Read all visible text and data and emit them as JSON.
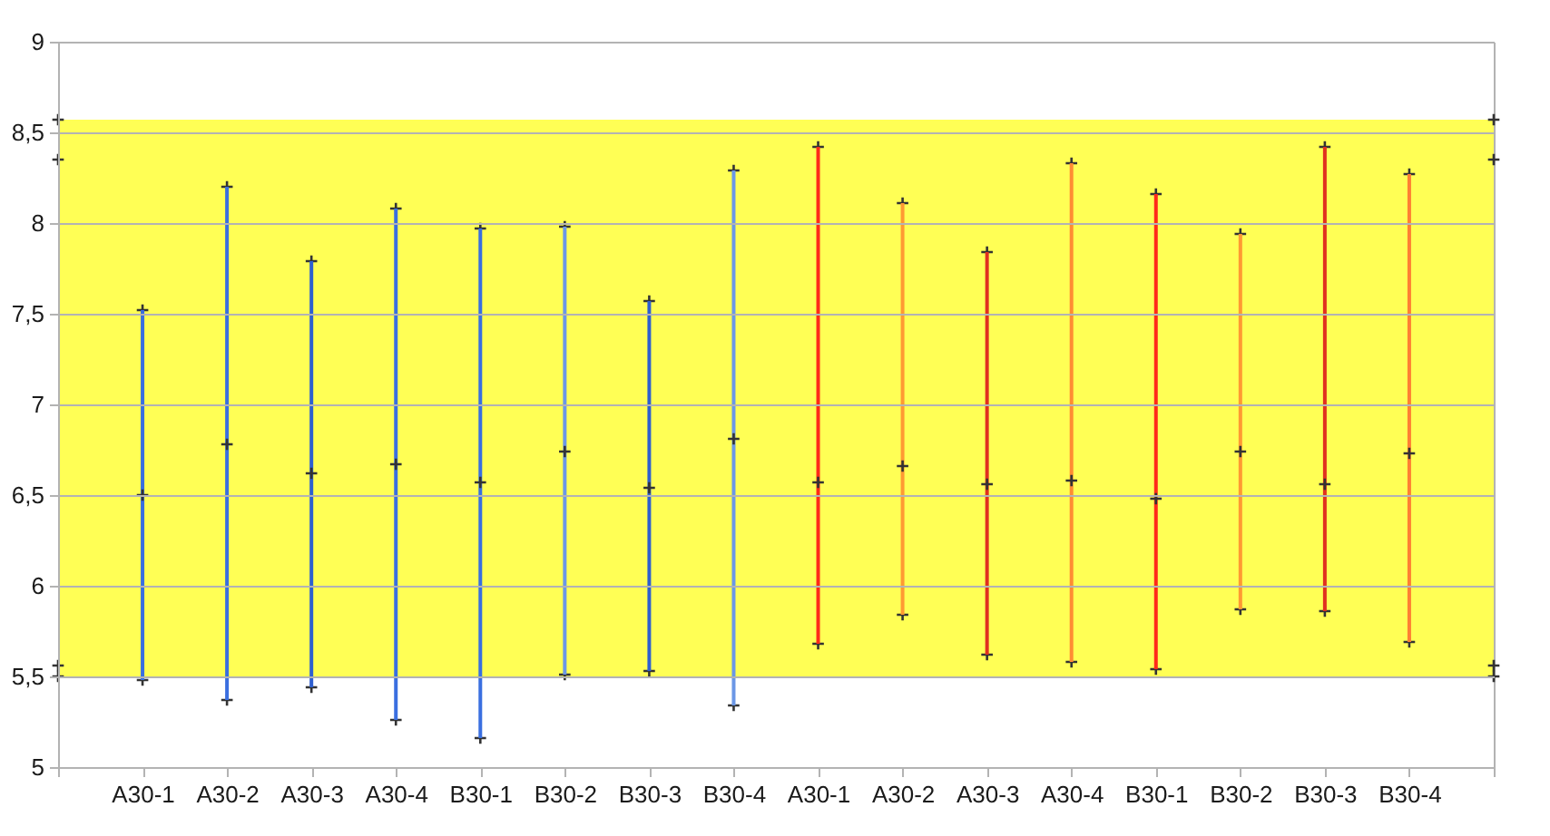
{
  "chart_data": {
    "type": "scatter",
    "categories": [
      null,
      "A30-1",
      "A30-2",
      "A30-3",
      "A30-4",
      "B30-1",
      "B30-2",
      "B30-3",
      "B30-4",
      "A30-1",
      "A30-2",
      "A30-3",
      "A30-4",
      "B30-1",
      "B30-2",
      "B30-3",
      "B30-4",
      null
    ],
    "ylim": [
      5,
      9
    ],
    "yticks": [
      5,
      {
        "value": 5.5,
        "label": "5,5"
      },
      6,
      {
        "value": 6.5,
        "label": "6,5"
      },
      7,
      {
        "value": 7.5,
        "label": "7,5"
      },
      8,
      {
        "value": 8.5,
        "label": "8,5"
      },
      9
    ],
    "grid": "y",
    "marker": "cross",
    "bands": [
      {
        "axis": "y",
        "from": 5.5,
        "to": 8.57,
        "color": "#ffff55"
      }
    ],
    "series": [
      {
        "color": "#333333",
        "values": [
          null,
          7.52,
          8.2,
          7.79,
          8.08,
          7.97,
          7.98,
          7.57,
          8.29,
          8.42,
          8.11,
          7.84,
          8.33,
          8.16,
          7.94,
          8.42,
          8.27,
          null
        ]
      },
      {
        "color": "#333333",
        "values": [
          null,
          5.48,
          5.37,
          5.44,
          5.26,
          5.16,
          5.51,
          5.53,
          5.34,
          5.68,
          5.84,
          5.62,
          5.58,
          5.54,
          5.87,
          5.86,
          5.69,
          null
        ]
      },
      {
        "type": "bar",
        "colors": [
          null,
          "#3a6fe0",
          "#3a6fe0",
          "#2f5fd0",
          "#3a6fe0",
          "#3a6fe0",
          "#6b97e6",
          "#2f5fd0",
          "#6b97e6",
          "#ff2a1a",
          "#ff9933",
          "#e03020",
          "#ff8c33",
          "#ff2a1a",
          "#ff9933",
          "#e03020",
          "#ff7f33",
          null
        ],
        "base": [
          null,
          5.48,
          5.37,
          5.44,
          5.26,
          5.16,
          5.51,
          5.53,
          5.34,
          5.68,
          5.84,
          5.62,
          5.58,
          5.54,
          5.87,
          5.86,
          5.69,
          null
        ],
        "values": [
          null,
          2.04,
          2.83,
          2.35,
          2.82,
          2.81,
          2.47,
          2.04,
          2.95,
          2.74,
          2.27,
          2.22,
          2.75,
          2.62,
          2.07,
          2.56,
          2.58,
          null
        ]
      },
      {
        "color": "#333333",
        "values": [
          null,
          6.5,
          6.78,
          6.62,
          6.67,
          6.57,
          6.74,
          6.54,
          6.81,
          6.57,
          6.66,
          6.56,
          6.58,
          6.48,
          6.74,
          6.56,
          6.73,
          null
        ]
      },
      {
        "color": "#333333",
        "values": [
          8.57,
          null,
          null,
          null,
          null,
          null,
          null,
          null,
          null,
          null,
          null,
          null,
          null,
          null,
          null,
          null,
          null,
          8.57
        ]
      },
      {
        "color": "#333333",
        "values": [
          8.35,
          null,
          null,
          null,
          null,
          null,
          null,
          null,
          null,
          null,
          null,
          null,
          null,
          null,
          null,
          null,
          null,
          8.35
        ]
      },
      {
        "color": "#333333",
        "values": [
          5.56,
          null,
          null,
          null,
          null,
          null,
          null,
          null,
          null,
          null,
          null,
          null,
          null,
          null,
          null,
          null,
          null,
          5.56
        ]
      },
      {
        "color": "#333333",
        "values": [
          5.5,
          null,
          null,
          null,
          null,
          null,
          null,
          null,
          null,
          null,
          null,
          null,
          null,
          null,
          null,
          null,
          null,
          5.5
        ]
      }
    ]
  }
}
